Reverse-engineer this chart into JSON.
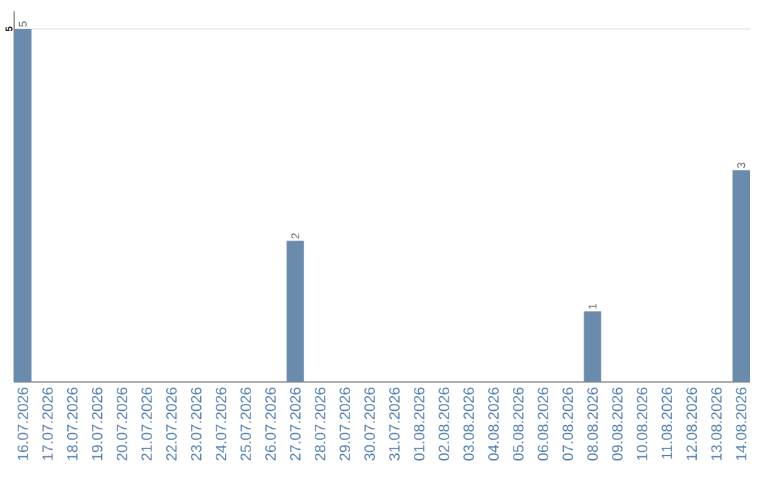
{
  "chart_data": {
    "type": "bar",
    "categories": [
      "16.07.2026",
      "17.07.2026",
      "18.07.2026",
      "19.07.2026",
      "20.07.2026",
      "21.07.2026",
      "22.07.2026",
      "23.07.2026",
      "24.07.2026",
      "25.07.2026",
      "26.07.2026",
      "27.07.2026",
      "28.07.2026",
      "29.07.2026",
      "30.07.2026",
      "31.07.2026",
      "01.08.2026",
      "02.08.2026",
      "03.08.2026",
      "04.08.2026",
      "05.08.2026",
      "06.08.2026",
      "07.08.2026",
      "08.08.2026",
      "09.08.2026",
      "10.08.2026",
      "11.08.2026",
      "12.08.2026",
      "13.08.2026",
      "14.08.2026"
    ],
    "values": [
      5,
      0,
      0,
      0,
      0,
      0,
      0,
      0,
      0,
      0,
      0,
      2,
      0,
      0,
      0,
      0,
      0,
      0,
      0,
      0,
      0,
      0,
      0,
      1,
      0,
      0,
      0,
      0,
      0,
      3
    ],
    "value_labels": [
      "5",
      null,
      null,
      null,
      null,
      null,
      null,
      null,
      null,
      null,
      null,
      "2",
      null,
      null,
      null,
      null,
      null,
      null,
      null,
      null,
      null,
      null,
      null,
      "1",
      null,
      null,
      null,
      null,
      null,
      "3"
    ],
    "color": "#6a8bab",
    "ylim": [
      0,
      5.25
    ],
    "yticks": [
      5
    ],
    "grid": "y"
  }
}
